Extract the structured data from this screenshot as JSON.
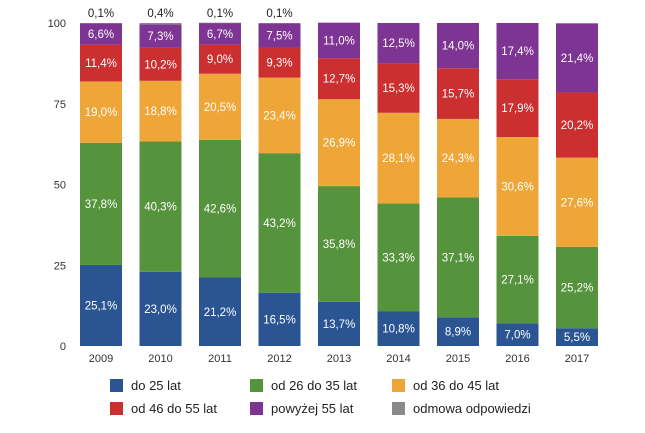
{
  "chart_data": {
    "type": "bar",
    "stacked": true,
    "categories": [
      "2009",
      "2010",
      "2011",
      "2012",
      "2013",
      "2014",
      "2015",
      "2016",
      "2017"
    ],
    "ylim": [
      0,
      100
    ],
    "yticks": [
      "0",
      "25",
      "50",
      "75",
      "100"
    ],
    "series": [
      {
        "name": "do 25 lat",
        "color": "#2a5592",
        "values": [
          25.1,
          23.0,
          21.2,
          16.5,
          13.7,
          10.8,
          8.9,
          7.0,
          5.5
        ],
        "labels": [
          "25,1%",
          "23,0%",
          "21,2%",
          "16,5%",
          "13,7%",
          "10,8%",
          "8,9%",
          "7,0%",
          "5,5%"
        ]
      },
      {
        "name": "od 26 do 35 lat",
        "color": "#56933d",
        "values": [
          37.8,
          40.3,
          42.6,
          43.2,
          35.8,
          33.3,
          37.1,
          27.1,
          25.2
        ],
        "labels": [
          "37,8%",
          "40,3%",
          "42,6%",
          "43,2%",
          "35,8%",
          "33,3%",
          "37,1%",
          "27,1%",
          "25,2%"
        ]
      },
      {
        "name": "od 36 do 45 lat",
        "color": "#efa638",
        "values": [
          19.0,
          18.8,
          20.5,
          23.4,
          26.9,
          28.1,
          24.3,
          30.6,
          27.6
        ],
        "labels": [
          "19,0%",
          "18,8%",
          "20,5%",
          "23,4%",
          "26,9%",
          "28,1%",
          "24,3%",
          "30,6%",
          "27,6%"
        ]
      },
      {
        "name": "od 46 do 55 lat",
        "color": "#cc2f30",
        "values": [
          11.4,
          10.2,
          9.0,
          9.3,
          12.7,
          15.3,
          15.7,
          17.9,
          20.2
        ],
        "labels": [
          "11,4%",
          "10,2%",
          "9,0%",
          "9,3%",
          "12,7%",
          "15,3%",
          "15,7%",
          "17,9%",
          "20,2%"
        ]
      },
      {
        "name": "powyżej 55 lat",
        "color": "#7d3493",
        "values": [
          6.6,
          7.3,
          6.7,
          7.5,
          11.0,
          12.5,
          14.0,
          17.4,
          21.4
        ],
        "labels": [
          "6,6%",
          "7,3%",
          "6,7%",
          "7,5%",
          "11,0%",
          "12,5%",
          "14,0%",
          "17,4%",
          "21,4%"
        ]
      },
      {
        "name": "odmowa odpowiedzi",
        "color": "#8a8a8a",
        "values": [
          0.1,
          0.4,
          0.1,
          0.1,
          0,
          0,
          0,
          0,
          0
        ],
        "labels": [
          "0,1%",
          "0,4%",
          "0,1%",
          "0,1%",
          "",
          "",
          "",
          "",
          ""
        ]
      }
    ]
  }
}
